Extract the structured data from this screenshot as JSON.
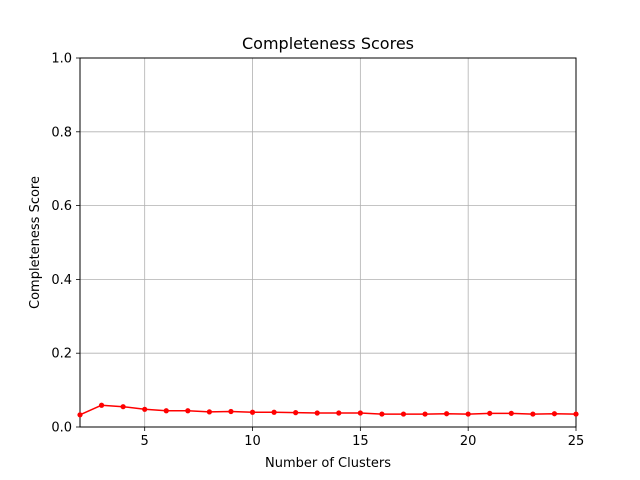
{
  "chart_data": {
    "type": "line",
    "title": "Completeness Scores",
    "xlabel": "Number of Clusters",
    "ylabel": "Completeness Score",
    "xlim": [
      2,
      25
    ],
    "ylim": [
      0,
      1.0
    ],
    "x_ticks": [
      5,
      10,
      15,
      20,
      25
    ],
    "x_tick_labels": [
      "5",
      "10",
      "15",
      "20",
      "25"
    ],
    "y_ticks": [
      0,
      0.2,
      0.4,
      0.6,
      0.8,
      1.0
    ],
    "y_tick_labels": [
      "0.0",
      "0.2",
      "0.4",
      "0.6",
      "0.8",
      "1.0"
    ],
    "grid": true,
    "series": [
      {
        "color": "#ff0000",
        "marker": "circle",
        "x": [
          2,
          3,
          4,
          5,
          6,
          7,
          8,
          9,
          10,
          11,
          12,
          13,
          14,
          15,
          16,
          17,
          18,
          19,
          20,
          21,
          22,
          23,
          24,
          25
        ],
        "values": [
          0.033,
          0.059,
          0.055,
          0.048,
          0.044,
          0.044,
          0.041,
          0.042,
          0.04,
          0.04,
          0.039,
          0.038,
          0.038,
          0.038,
          0.035,
          0.035,
          0.035,
          0.036,
          0.035,
          0.037,
          0.037,
          0.035,
          0.036,
          0.035
        ]
      }
    ]
  }
}
